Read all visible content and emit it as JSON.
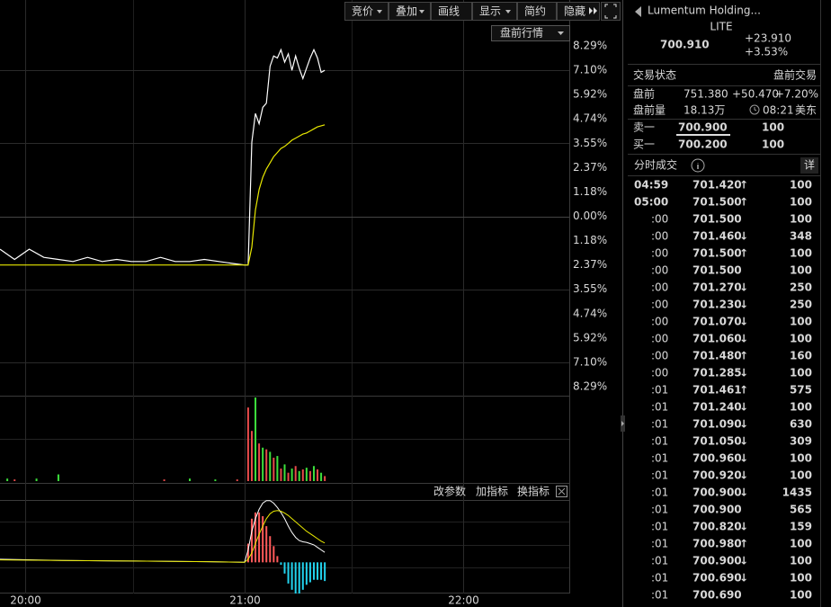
{
  "toolbar": {
    "buttons": [
      "竞价",
      "叠加",
      "画线",
      "显示",
      "简约",
      "隐藏"
    ],
    "dropdown": "盘前行情"
  },
  "chart_data": [
    {
      "type": "line",
      "x": [
        "19:53",
        "19:57",
        "20:01",
        "20:05",
        "20:09",
        "20:13",
        "20:17",
        "20:21",
        "20:25",
        "20:29",
        "20:33",
        "20:37",
        "20:41",
        "20:45",
        "20:49",
        "20:53",
        "20:57",
        "21:00",
        "21:01",
        "21:02",
        "21:03",
        "21:04",
        "21:05",
        "21:06",
        "21:07",
        "21:08",
        "21:09",
        "21:10",
        "21:11",
        "21:12",
        "21:13",
        "21:14",
        "21:15",
        "21:16",
        "21:17",
        "21:18",
        "21:19",
        "21:20",
        "21:21",
        "21:22"
      ],
      "series": [
        {
          "color": "#ffffff",
          "values": [
            -1.6,
            -2.1,
            -1.6,
            -2.0,
            -2.1,
            -2.2,
            -2.0,
            -2.2,
            -2.1,
            -2.2,
            -2.2,
            -2.0,
            -2.2,
            -2.2,
            -2.1,
            -2.2,
            -2.3,
            -2.37,
            -2.37,
            3.6,
            5.0,
            4.5,
            5.3,
            5.5,
            7.3,
            7.8,
            7.7,
            8.1,
            7.5,
            7.9,
            7.1,
            7.8,
            7.2,
            6.7,
            7.2,
            7.7,
            8.1,
            7.7,
            7.0,
            7.1
          ]
        },
        {
          "color": "#e8e800",
          "values": [
            -2.37,
            -2.37,
            -2.37,
            -2.37,
            -2.37,
            -2.37,
            -2.37,
            -2.37,
            -2.37,
            -2.37,
            -2.37,
            -2.37,
            -2.37,
            -2.37,
            -2.37,
            -2.37,
            -2.37,
            -2.37,
            -2.37,
            -1.5,
            0.3,
            1.3,
            1.9,
            2.3,
            2.6,
            2.9,
            3.1,
            3.3,
            3.4,
            3.55,
            3.7,
            3.8,
            3.9,
            4.0,
            4.05,
            4.15,
            4.25,
            4.35,
            4.4,
            4.45
          ]
        }
      ],
      "xlim": [
        "19:53",
        "22:29"
      ],
      "xticks": [
        "20:00",
        "21:00",
        "22:00"
      ],
      "ylim": [
        -8.29,
        8.29
      ],
      "yticks": [
        {
          "value": 8.29,
          "label": "8.29%"
        },
        {
          "value": 7.1,
          "label": "7.10%"
        },
        {
          "value": 5.92,
          "label": "5.92%"
        },
        {
          "value": 4.74,
          "label": "4.74%"
        },
        {
          "value": 3.55,
          "label": "3.55%"
        },
        {
          "value": 2.37,
          "label": "2.37%"
        },
        {
          "value": 1.18,
          "label": "1.18%"
        },
        {
          "value": 0,
          "label": "0.00%"
        },
        {
          "value": -1.18,
          "label": "1.18%"
        },
        {
          "value": -2.37,
          "label": "2.37%"
        },
        {
          "value": -3.55,
          "label": "3.55%"
        },
        {
          "value": -4.74,
          "label": "4.74%"
        },
        {
          "value": -5.92,
          "label": "5.92%"
        },
        {
          "value": -7.1,
          "label": "7.10%"
        },
        {
          "value": -8.29,
          "label": "8.29%"
        }
      ],
      "grid": true
    },
    {
      "type": "bar",
      "x": [
        "19:55",
        "19:57",
        "20:03",
        "20:09",
        "20:38",
        "20:45",
        "20:52",
        "20:58",
        "21:01",
        "21:02",
        "21:03",
        "21:04",
        "21:05",
        "21:06",
        "21:07",
        "21:08",
        "21:09",
        "21:10",
        "21:11",
        "21:12",
        "21:13",
        "21:14",
        "21:15",
        "21:16",
        "21:17",
        "21:18",
        "21:19",
        "21:20",
        "21:21",
        "21:22"
      ],
      "values": [
        3,
        2,
        3,
        8,
        2,
        3,
        2,
        2,
        88,
        60,
        100,
        45,
        40,
        38,
        35,
        28,
        30,
        15,
        20,
        10,
        15,
        18,
        12,
        14,
        16,
        12,
        18,
        14,
        10,
        6
      ],
      "colors": [
        "#3ce03c",
        "#e84a4a",
        "#3ce03c",
        "#3ce03c",
        "#e84a4a",
        "#3ce03c",
        "#3ce03c",
        "#e84a4a",
        "#e84a4a",
        "#e84a4a",
        "#3ce03c",
        "#e84a4a",
        "#3ce03c",
        "#e84a4a",
        "#3ce03c",
        "#e84a4a",
        "#3ce03c",
        "#e84a4a",
        "#3ce03c",
        "#e84a4a",
        "#3ce03c",
        "#e84a4a",
        "#3ce03c",
        "#e84a4a",
        "#3ce03c",
        "#e84a4a",
        "#3ce03c",
        "#e84a4a",
        "#3ce03c",
        "#e84a4a"
      ],
      "ylim": [
        0,
        100
      ]
    },
    {
      "type": "macd",
      "x": [
        "19:53",
        "20:10",
        "20:30",
        "20:50",
        "21:00",
        "21:01",
        "21:02",
        "21:03",
        "21:04",
        "21:05",
        "21:06",
        "21:07",
        "21:08",
        "21:09",
        "21:10",
        "21:11",
        "21:12",
        "21:13",
        "21:14",
        "21:15",
        "21:16",
        "21:17",
        "21:18",
        "21:19",
        "21:20",
        "21:21",
        "21:22"
      ],
      "series": [
        {
          "color": "#ffffff",
          "values": [
            0.5,
            0.3,
            0.2,
            0.1,
            0,
            2,
            5,
            7,
            8.5,
            9.5,
            9.9,
            9.9,
            9.5,
            8.8,
            8,
            7,
            5.8,
            4.8,
            4,
            3.5,
            3.3,
            3.2,
            3,
            2.8,
            2.4,
            2,
            1.6
          ]
        },
        {
          "color": "#e8e800",
          "values": [
            0.4,
            0.3,
            0.2,
            0.1,
            0,
            0.5,
            1.5,
            3,
            4.5,
            5.8,
            7,
            7.8,
            8.2,
            8.3,
            8.2,
            7.9,
            7.5,
            7,
            6.5,
            6,
            5.5,
            5,
            4.6,
            4.2,
            3.8,
            3.4,
            3.1
          ]
        }
      ],
      "histogram": {
        "values": [
          null,
          null,
          null,
          null,
          0,
          3,
          7,
          8,
          8,
          7.4,
          5.8,
          4.2,
          2.6,
          1,
          -0.4,
          -1.8,
          -3.4,
          -4.4,
          -5,
          -5,
          -4.4,
          -3.6,
          -3.2,
          -2.8,
          -2.8,
          -2.8,
          -3.0
        ],
        "colors": [
          "#ff5a5a",
          "#22d3ee"
        ]
      },
      "ylim": [
        -5,
        10
      ]
    }
  ],
  "indicator_toolbar": [
    "改参数",
    "加指标",
    "换指标"
  ],
  "quote": {
    "name": "Lumentum Holding...",
    "ticker": "LITE",
    "price": "700.910",
    "change": "+23.910",
    "change_pct": "+3.53%",
    "status_label": "交易状态",
    "status": "盘前交易",
    "premarket": {
      "label": "盘前",
      "price": "751.380",
      "change": "+50.470",
      "pct": "+7.20%"
    },
    "premarket_volume": {
      "label": "盘前量",
      "value": "18.13万",
      "time": "08:21",
      "zone": "美东"
    },
    "book": [
      {
        "label": "卖一",
        "price": "700.900",
        "size": "100"
      },
      {
        "label": "买一",
        "price": "700.200",
        "size": "100"
      }
    ]
  },
  "trades": {
    "title": "分时成交",
    "detail": "详",
    "rows": [
      {
        "time": "04:59",
        "price": "701.420",
        "arrow": "↑",
        "volume": "100"
      },
      {
        "time": "05:00",
        "price": "701.500",
        "arrow": "↑",
        "volume": "100"
      },
      {
        "time": ":00",
        "price": "701.500",
        "volume": "100"
      },
      {
        "time": ":00",
        "price": "701.460",
        "arrow": "↓",
        "volume": "348"
      },
      {
        "time": ":00",
        "price": "701.500",
        "arrow": "↑",
        "volume": "100"
      },
      {
        "time": ":00",
        "price": "701.500",
        "volume": "100"
      },
      {
        "time": ":00",
        "price": "701.270",
        "arrow": "↓",
        "volume": "250"
      },
      {
        "time": ":00",
        "price": "701.230",
        "arrow": "↓",
        "volume": "250"
      },
      {
        "time": ":00",
        "price": "701.070",
        "arrow": "↓",
        "volume": "100"
      },
      {
        "time": ":00",
        "price": "701.060",
        "arrow": "↓",
        "volume": "100"
      },
      {
        "time": ":00",
        "price": "701.480",
        "arrow": "↑",
        "volume": "160"
      },
      {
        "time": ":00",
        "price": "701.285",
        "arrow": "↓",
        "volume": "100"
      },
      {
        "time": ":01",
        "price": "701.461",
        "arrow": "↑",
        "volume": "575"
      },
      {
        "time": ":01",
        "price": "701.240",
        "arrow": "↓",
        "volume": "100"
      },
      {
        "time": ":01",
        "price": "701.090",
        "arrow": "↓",
        "volume": "630"
      },
      {
        "time": ":01",
        "price": "701.050",
        "arrow": "↓",
        "volume": "309"
      },
      {
        "time": ":01",
        "price": "700.960",
        "arrow": "↓",
        "volume": "100"
      },
      {
        "time": ":01",
        "price": "700.920",
        "arrow": "↓",
        "volume": "100"
      },
      {
        "time": ":01",
        "price": "700.900",
        "arrow": "↓",
        "volume": "1435"
      },
      {
        "time": ":01",
        "price": "700.900",
        "volume": "565"
      },
      {
        "time": ":01",
        "price": "700.820",
        "arrow": "↓",
        "volume": "159"
      },
      {
        "time": ":01",
        "price": "700.980",
        "arrow": "↑",
        "volume": "100"
      },
      {
        "time": ":01",
        "price": "700.900",
        "arrow": "↓",
        "volume": "100"
      },
      {
        "time": ":01",
        "price": "700.690",
        "arrow": "↓",
        "volume": "100"
      },
      {
        "time": ":01",
        "price": "700.690",
        "volume": "100"
      }
    ]
  }
}
